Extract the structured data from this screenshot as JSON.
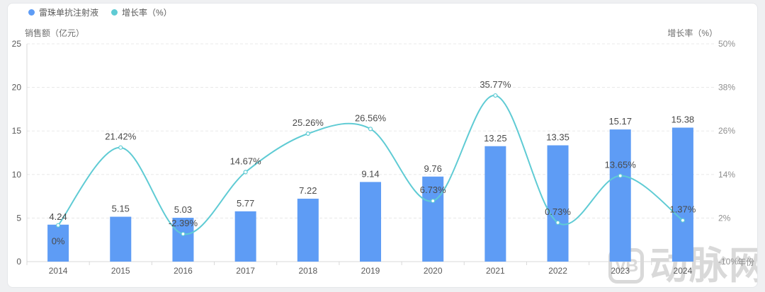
{
  "legend": {
    "items": [
      {
        "label": "雷珠单抗注射液",
        "color": "#5e9cf5"
      },
      {
        "label": "增长率（%）",
        "color": "#5fcbd4"
      }
    ]
  },
  "watermark": {
    "logo_text": "VB",
    "brand_text": "动脉网"
  },
  "colors": {
    "bar": "#5e9cf5",
    "line": "#5fcbd4",
    "marker_fill": "#ffffff",
    "grid": "#e8e8e8",
    "axis_line": "#d9d9d9",
    "data_label": "#4a4a4a",
    "tick_left": "#595959",
    "tick_right": "#8f8f8f",
    "year_label": "#595959"
  },
  "chart_data": {
    "type": "bar+line",
    "categories": [
      "2014",
      "2015",
      "2016",
      "2017",
      "2018",
      "2019",
      "2020",
      "2021",
      "2022",
      "2023",
      "2024"
    ],
    "series": [
      {
        "name": "雷珠单抗注射液",
        "type": "bar",
        "axis": "left",
        "values": [
          4.24,
          5.15,
          5.03,
          5.77,
          7.22,
          9.14,
          9.76,
          13.25,
          13.35,
          15.17,
          15.38
        ],
        "labels": [
          "4.24",
          "5.15",
          "5.03",
          "5.77",
          "7.22",
          "9.14",
          "9.76",
          "13.25",
          "13.35",
          "15.17",
          "15.38"
        ]
      },
      {
        "name": "增长率（%）",
        "type": "line",
        "axis": "right",
        "smooth": true,
        "values": [
          0,
          21.42,
          -2.39,
          14.67,
          25.26,
          26.56,
          6.73,
          35.77,
          0.73,
          13.65,
          1.37
        ],
        "labels": [
          "0%",
          "21.42%",
          "-2.39%",
          "14.67%",
          "25.26%",
          "26.56%",
          "6.73%",
          "35.77%",
          "0.73%",
          "13.65%",
          "1.37%"
        ],
        "label_positions": [
          "below",
          "above",
          "above",
          "above",
          "above",
          "above",
          "above",
          "above",
          "above",
          "above",
          "above"
        ]
      }
    ],
    "left_axis": {
      "title": "销售额（亿元）",
      "min": 0,
      "max": 25,
      "ticks": [
        0,
        5,
        10,
        15,
        20,
        25
      ],
      "tick_labels": [
        "0",
        "5",
        "10",
        "15",
        "20",
        "25"
      ]
    },
    "right_axis": {
      "title": "增长率（%）",
      "min": -10,
      "max": 50,
      "ticks": [
        -10,
        2,
        14,
        26,
        38,
        50
      ],
      "tick_labels": [
        "-10%",
        "2%",
        "14%",
        "26%",
        "38%",
        "50%"
      ]
    },
    "x_axis": {
      "title": "年份"
    },
    "grid": "dashed horizontal gridlines",
    "legend_position": "top-left"
  }
}
